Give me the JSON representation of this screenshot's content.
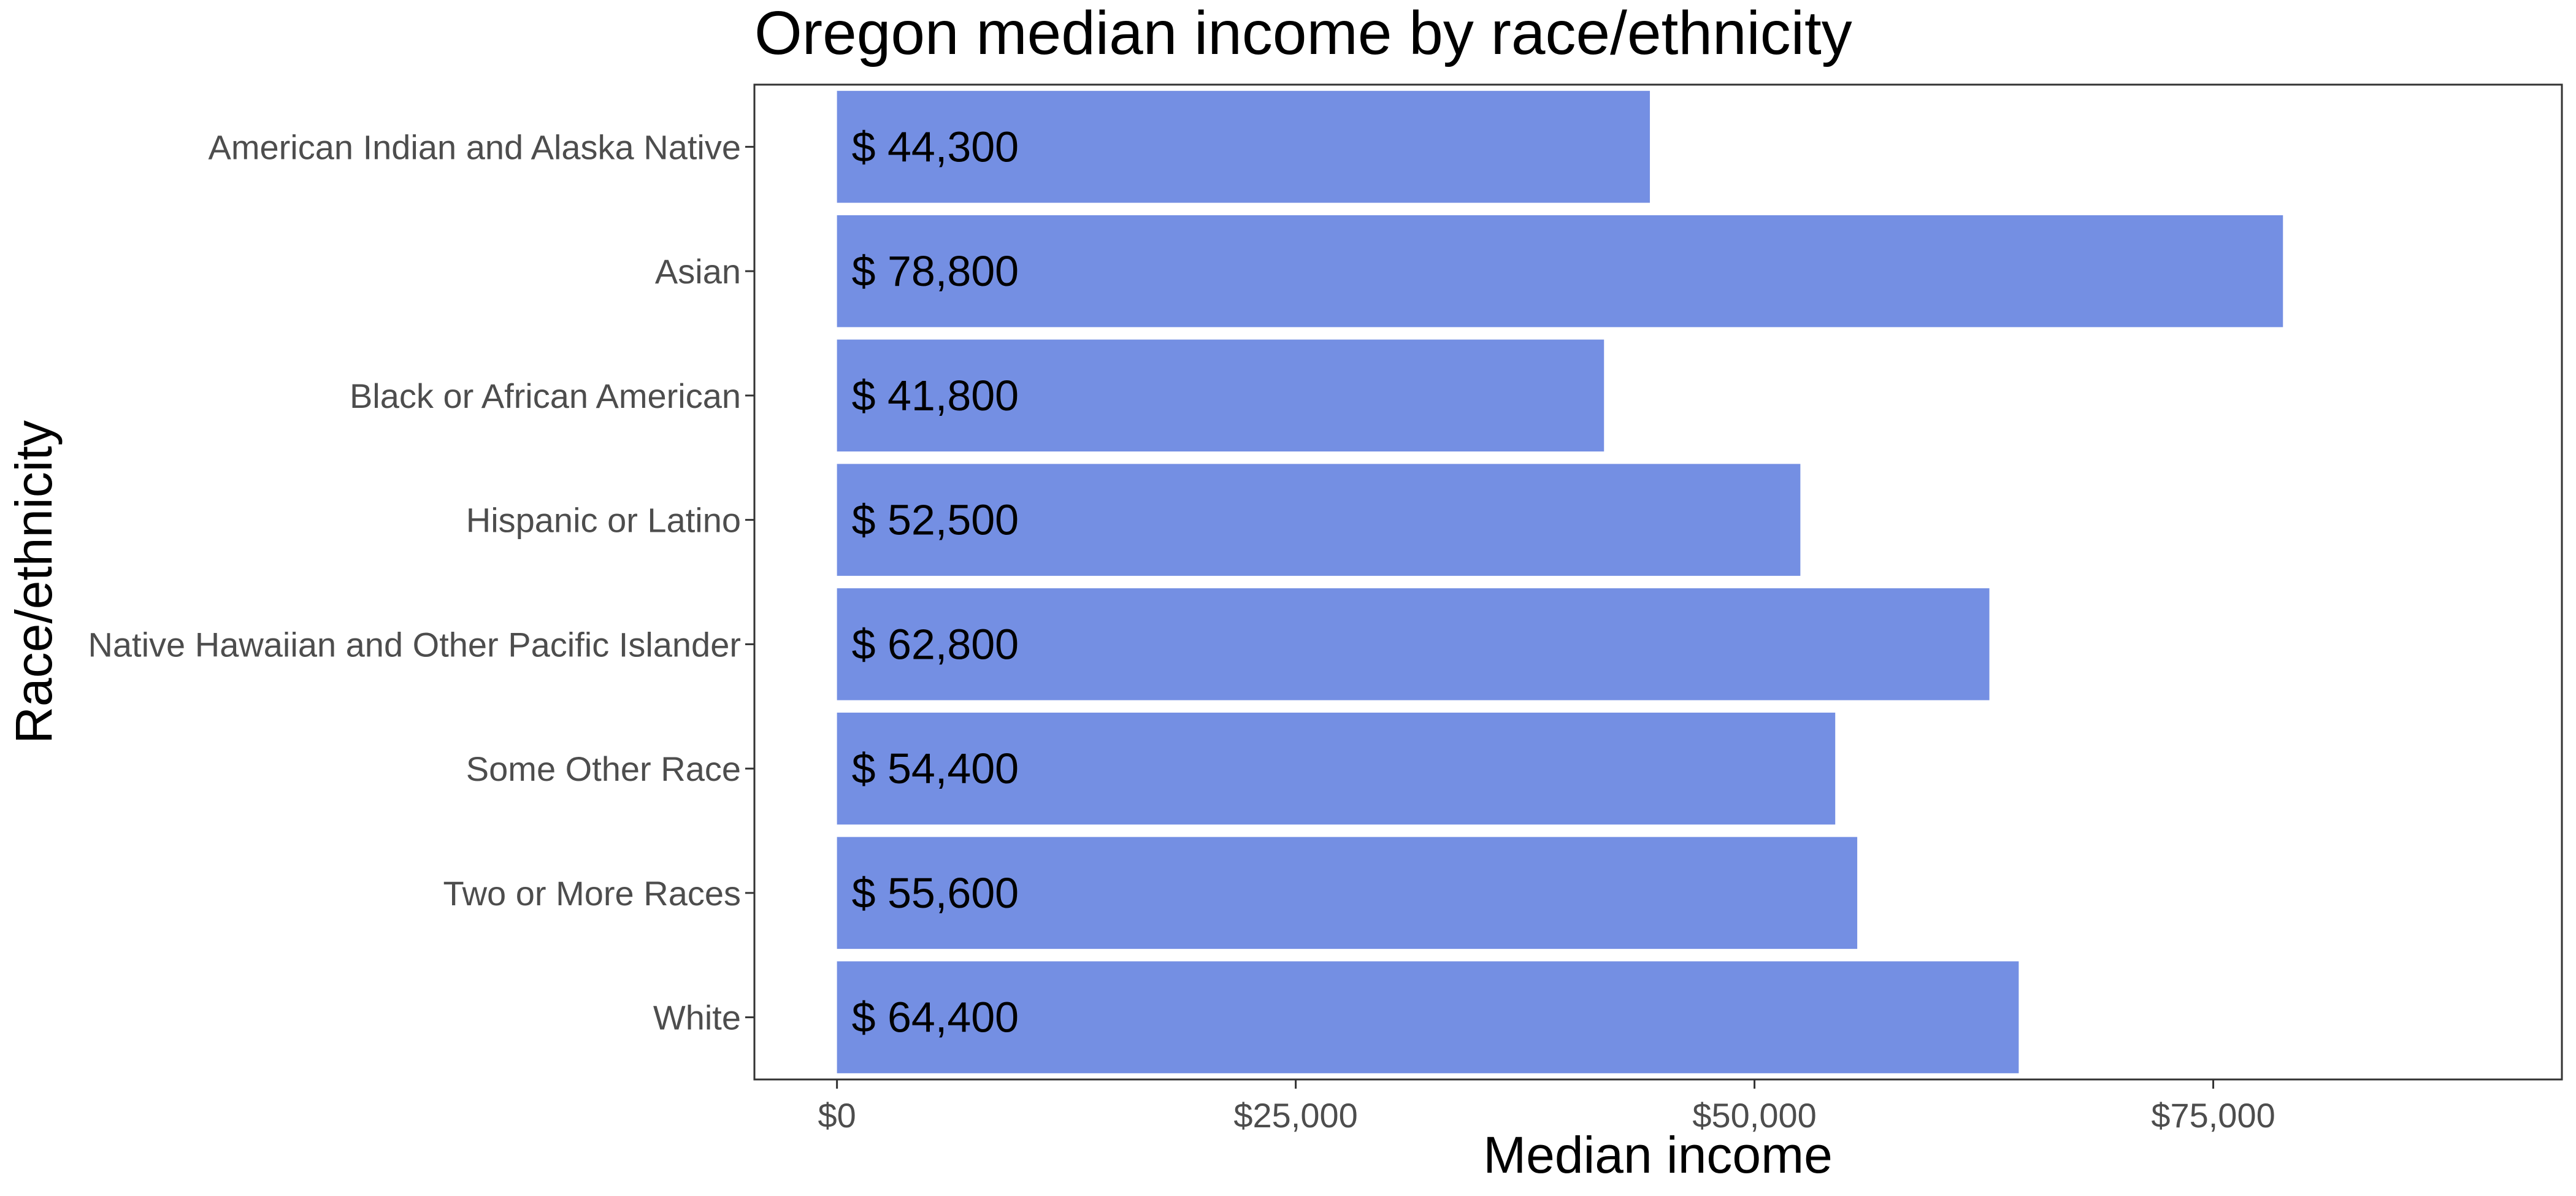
{
  "chart_data": {
    "type": "bar",
    "orientation": "horizontal",
    "title": "Oregon median income by race/ethnicity",
    "xlabel": "Median income",
    "ylabel": "Race/ethnicity",
    "categories": [
      "American Indian and Alaska Native",
      "Asian",
      "Black or African American",
      "Hispanic or Latino",
      "Native Hawaiian and Other Pacific Islander",
      "Some Other Race",
      "Two or More Races",
      "White"
    ],
    "values": [
      44300,
      78800,
      41800,
      52500,
      62800,
      54400,
      55600,
      64400
    ],
    "data_labels": [
      "$ 44,300",
      "$ 78,800",
      "$ 41,800",
      "$ 52,500",
      "$ 62,800",
      "$ 54,400",
      "$ 55,600",
      "$ 64,400"
    ],
    "xlim": [
      -4500,
      94000
    ],
    "xticks": [
      0,
      25000,
      50000,
      75000
    ],
    "xtick_labels": [
      "$0",
      "$25,000",
      "$50,000",
      "$75,000"
    ],
    "grid": false,
    "legend": "none",
    "colors": {
      "bar": "#748fe3",
      "panel_border": "#333333",
      "axis_text": "#4d4d4d",
      "label_text": "#000000"
    }
  }
}
